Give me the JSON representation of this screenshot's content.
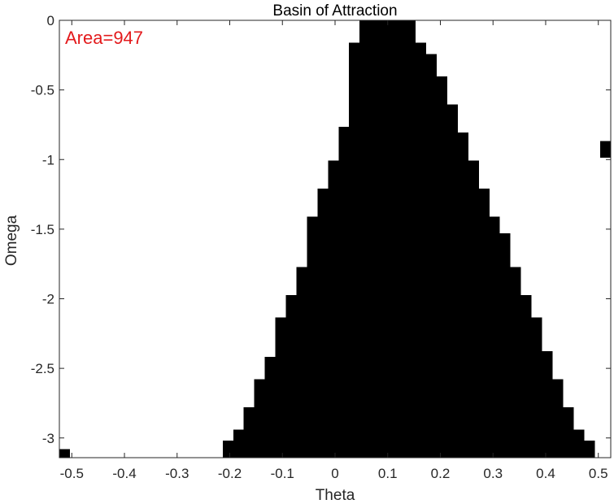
{
  "chart_data": {
    "type": "heatmap",
    "title": "Basin of Attraction",
    "xlabel": "Theta",
    "ylabel": "Omega",
    "xlim": [
      -0.5236,
      0.5236
    ],
    "ylim": [
      -3.1416,
      0
    ],
    "x_ticks": [
      "-0.5",
      "-0.4",
      "-0.3",
      "-0.2",
      "-0.1",
      "0",
      "0.1",
      "0.2",
      "0.3",
      "0.4",
      "0.5"
    ],
    "x_tick_values": [
      -0.5,
      -0.4,
      -0.3,
      -0.2,
      -0.1,
      0,
      0.1,
      0.2,
      0.3,
      0.4,
      0.5
    ],
    "y_ticks": [
      "0",
      "-0.5",
      "-1",
      "-1.5",
      "-2",
      "-2.5",
      "-3"
    ],
    "y_tick_values": [
      0,
      -0.5,
      -1,
      -1.5,
      -2,
      -2.5,
      -3
    ],
    "annotation": {
      "text": "Area=947",
      "color": "#e31a1c"
    },
    "fill_color": "#000000",
    "grid": false,
    "basin_rows": [
      {
        "omega": [
          -0.0805,
          0.0
        ],
        "theta": [
          0.0465,
          0.1531
        ]
      },
      {
        "omega": [
          -0.0805,
          -0.0001
        ],
        "theta": [
          0.1531,
          0.1531
        ]
      },
      {
        "omega": [
          -0.1611,
          -0.0805
        ],
        "theta": [
          0.0466,
          0.1531
        ]
      },
      {
        "omega": [
          -0.2416,
          -0.1611
        ],
        "theta": [
          0.0266,
          0.1731
        ]
      },
      {
        "omega": [
          -0.4028,
          -0.2416
        ],
        "theta": [
          0.0266,
          0.1931
        ]
      },
      {
        "omega": [
          -0.6041,
          -0.4028
        ],
        "theta": [
          0.0266,
          0.2131
        ]
      },
      {
        "omega": [
          -0.7652,
          -0.6041
        ],
        "theta": [
          0.0266,
          0.2331
        ]
      },
      {
        "omega": [
          -0.8055,
          -0.7652
        ],
        "theta": [
          0.0066,
          0.2331
        ]
      },
      {
        "omega": [
          -1.0068,
          -0.8055
        ],
        "theta": [
          0.0066,
          0.2531
        ]
      },
      {
        "omega": [
          -1.2082,
          -1.0068
        ],
        "theta": [
          -0.0134,
          0.2731
        ]
      },
      {
        "omega": [
          -1.4095,
          -1.2082
        ],
        "theta": [
          -0.0334,
          0.2931
        ]
      },
      {
        "omega": [
          -1.5304,
          -1.4095
        ],
        "theta": [
          -0.0534,
          0.3131
        ]
      },
      {
        "omega": [
          -1.772,
          -1.5304
        ],
        "theta": [
          -0.0534,
          0.3331
        ]
      },
      {
        "omega": [
          -1.9733,
          -1.772
        ],
        "theta": [
          -0.0734,
          0.3531
        ]
      },
      {
        "omega": [
          -2.1344,
          -1.9733
        ],
        "theta": [
          -0.0934,
          0.3731
        ]
      },
      {
        "omega": [
          -2.376,
          -2.1344
        ],
        "theta": [
          -0.1134,
          0.3931
        ]
      },
      {
        "omega": [
          -2.4163,
          -2.376
        ],
        "theta": [
          -0.1134,
          0.4131
        ]
      },
      {
        "omega": [
          -2.5774,
          -2.4163
        ],
        "theta": [
          -0.1334,
          0.4131
        ]
      },
      {
        "omega": [
          -2.7787,
          -2.5774
        ],
        "theta": [
          -0.1534,
          0.4331
        ]
      },
      {
        "omega": [
          -2.9398,
          -2.7787
        ],
        "theta": [
          -0.1734,
          0.4531
        ]
      },
      {
        "omega": [
          -3.0204,
          -2.9398
        ],
        "theta": [
          -0.1934,
          0.4731
        ]
      },
      {
        "omega": [
          -3.1416,
          -3.0204
        ],
        "theta": [
          -0.2134,
          0.4931
        ]
      }
    ],
    "isolated_cells": [
      {
        "theta": [
          0.5036,
          0.5236
        ],
        "omega": [
          -0.9868,
          -0.8659
        ]
      },
      {
        "theta": [
          -0.5236,
          -0.5036
        ],
        "omega": [
          -3.1416,
          -3.0811
        ]
      }
    ]
  }
}
